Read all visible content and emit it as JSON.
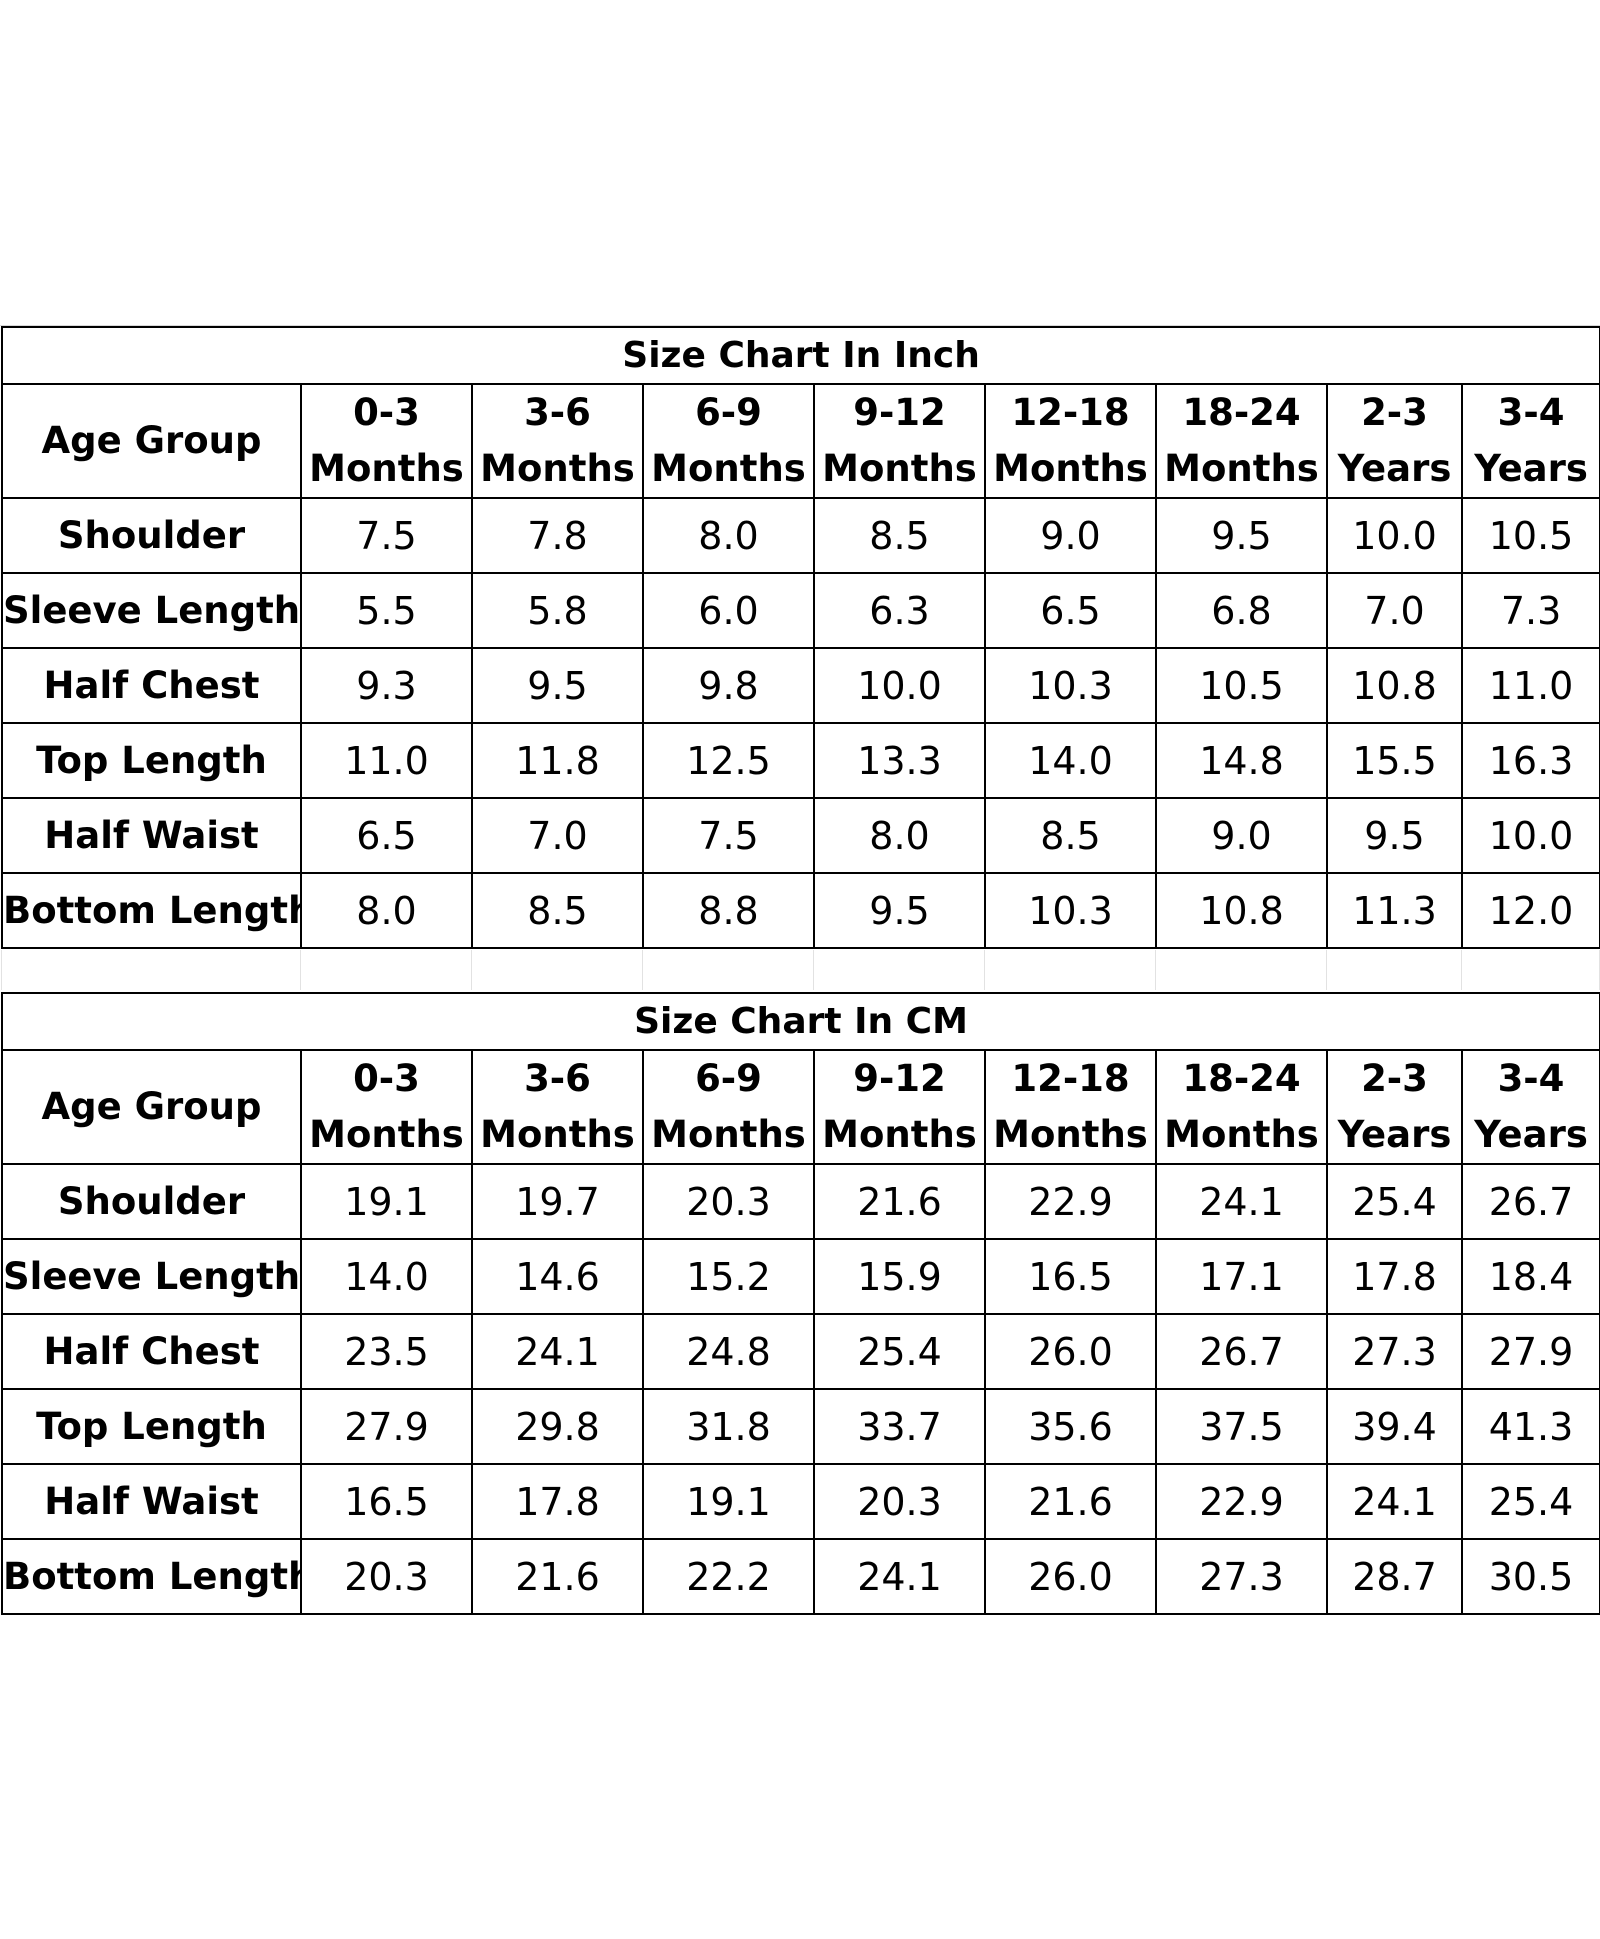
{
  "inch_chart": {
    "title": "Size Chart In Inch",
    "header": {
      "label": "Age Group",
      "columns": [
        [
          "0-3",
          "Months"
        ],
        [
          "3-6",
          "Months"
        ],
        [
          "6-9",
          "Months"
        ],
        [
          "9-12",
          "Months"
        ],
        [
          "12-18",
          "Months"
        ],
        [
          "18-24",
          "Months"
        ],
        [
          "2-3",
          "Years"
        ],
        [
          "3-4",
          "Years"
        ]
      ]
    },
    "rows": [
      {
        "label": "Shoulder",
        "values": [
          "7.5",
          "7.8",
          "8.0",
          "8.5",
          "9.0",
          "9.5",
          "10.0",
          "10.5"
        ]
      },
      {
        "label": "Sleeve Length",
        "values": [
          "5.5",
          "5.8",
          "6.0",
          "6.3",
          "6.5",
          "6.8",
          "7.0",
          "7.3"
        ]
      },
      {
        "label": "Half Chest",
        "values": [
          "9.3",
          "9.5",
          "9.8",
          "10.0",
          "10.3",
          "10.5",
          "10.8",
          "11.0"
        ]
      },
      {
        "label": "Top Length",
        "values": [
          "11.0",
          "11.8",
          "12.5",
          "13.3",
          "14.0",
          "14.8",
          "15.5",
          "16.3"
        ]
      },
      {
        "label": "Half Waist",
        "values": [
          "6.5",
          "7.0",
          "7.5",
          "8.0",
          "8.5",
          "9.0",
          "9.5",
          "10.0"
        ]
      },
      {
        "label": "Bottom Length",
        "values": [
          "8.0",
          "8.5",
          "8.8",
          "9.5",
          "10.3",
          "10.8",
          "11.3",
          "12.0"
        ]
      }
    ]
  },
  "cm_chart": {
    "title": "Size Chart In CM",
    "header": {
      "label": "Age Group",
      "columns": [
        [
          "0-3",
          "Months"
        ],
        [
          "3-6",
          "Months"
        ],
        [
          "6-9",
          "Months"
        ],
        [
          "9-12",
          "Months"
        ],
        [
          "12-18",
          "Months"
        ],
        [
          "18-24",
          "Months"
        ],
        [
          "2-3",
          "Years"
        ],
        [
          "3-4",
          "Years"
        ]
      ]
    },
    "rows": [
      {
        "label": "Shoulder",
        "values": [
          "19.1",
          "19.7",
          "20.3",
          "21.6",
          "22.9",
          "24.1",
          "25.4",
          "26.7"
        ]
      },
      {
        "label": "Sleeve Length",
        "values": [
          "14.0",
          "14.6",
          "15.2",
          "15.9",
          "16.5",
          "17.1",
          "17.8",
          "18.4"
        ]
      },
      {
        "label": "Half Chest",
        "values": [
          "23.5",
          "24.1",
          "24.8",
          "25.4",
          "26.0",
          "26.7",
          "27.3",
          "27.9"
        ]
      },
      {
        "label": "Top Length",
        "values": [
          "27.9",
          "29.8",
          "31.8",
          "33.7",
          "35.6",
          "37.5",
          "39.4",
          "41.3"
        ]
      },
      {
        "label": "Half Waist",
        "values": [
          "16.5",
          "17.8",
          "19.1",
          "20.3",
          "21.6",
          "22.9",
          "24.1",
          "25.4"
        ]
      },
      {
        "label": "Bottom Length",
        "values": [
          "20.3",
          "21.6",
          "22.2",
          "24.1",
          "26.0",
          "27.3",
          "28.7",
          "30.5"
        ]
      }
    ]
  }
}
